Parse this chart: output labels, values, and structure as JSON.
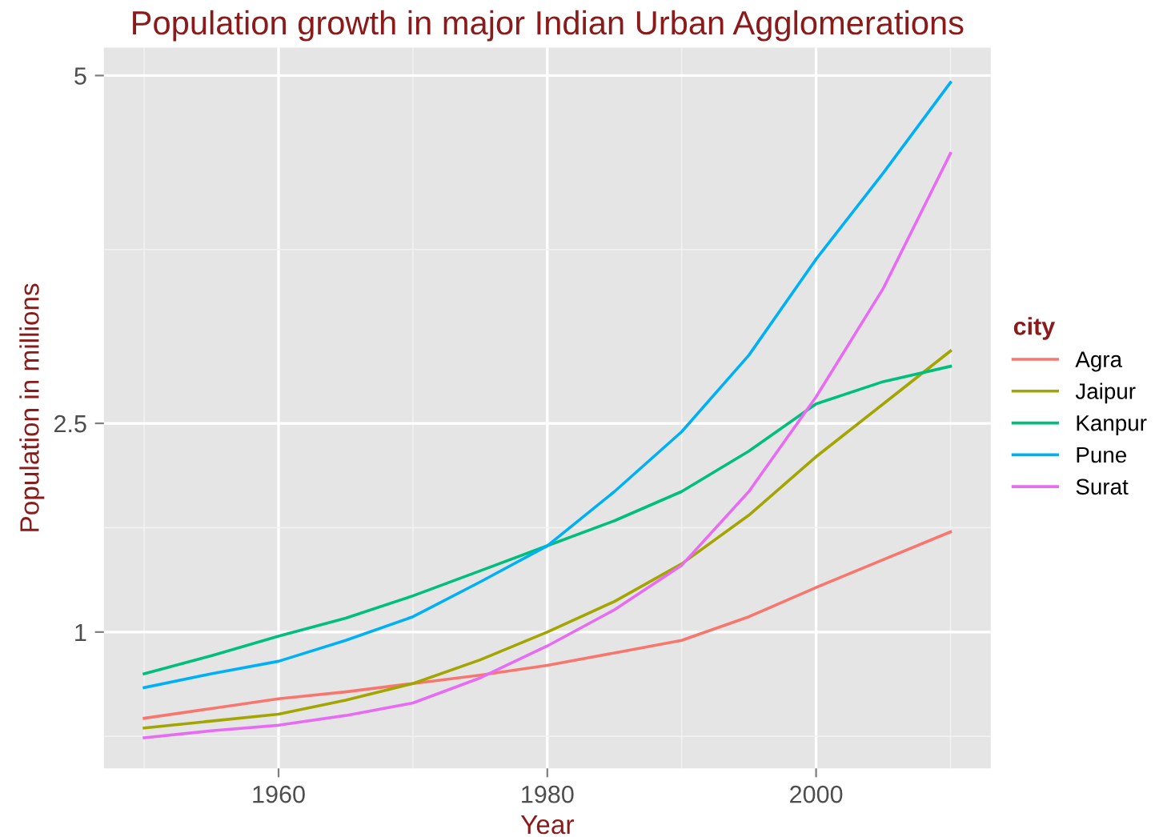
{
  "chart_data": {
    "type": "line",
    "title": "Population growth in major Indian Urban Agglomerations",
    "xlabel": "Year",
    "ylabel": "Population in millions",
    "legend_title": "city",
    "x": [
      1950,
      1955,
      1960,
      1965,
      1970,
      1975,
      1980,
      1985,
      1990,
      1995,
      2000,
      2005,
      2010
    ],
    "series": [
      {
        "name": "Agra",
        "color": "#f8766d",
        "values": [
          0.38,
          0.45,
          0.52,
          0.57,
          0.63,
          0.69,
          0.76,
          0.85,
          0.94,
          1.11,
          1.32,
          1.52,
          1.72
        ]
      },
      {
        "name": "Jaipur",
        "color": "#a3a500",
        "values": [
          0.31,
          0.36,
          0.41,
          0.51,
          0.63,
          0.8,
          1.0,
          1.22,
          1.49,
          1.84,
          2.26,
          2.64,
          3.02
        ]
      },
      {
        "name": "Kanpur",
        "color": "#00bf7d",
        "values": [
          0.7,
          0.83,
          0.97,
          1.1,
          1.26,
          1.44,
          1.62,
          1.8,
          2.01,
          2.3,
          2.64,
          2.8,
          2.91
        ]
      },
      {
        "name": "Pune",
        "color": "#00b0f6",
        "values": [
          0.6,
          0.7,
          0.79,
          0.94,
          1.11,
          1.36,
          1.62,
          2.01,
          2.44,
          2.99,
          3.68,
          4.3,
          4.95
        ]
      },
      {
        "name": "Surat",
        "color": "#e76bf3",
        "values": [
          0.24,
          0.29,
          0.33,
          0.4,
          0.49,
          0.67,
          0.9,
          1.16,
          1.48,
          2.01,
          2.69,
          3.47,
          4.44
        ]
      }
    ],
    "xlim": [
      1947,
      2013
    ],
    "xticks": [
      1960,
      1980,
      2000
    ],
    "ylim": [
      0.02,
      5.2
    ],
    "yticks": [
      1,
      2.5,
      5
    ],
    "grid": true,
    "legend": "right",
    "marker": "none",
    "line_style": "solid"
  }
}
